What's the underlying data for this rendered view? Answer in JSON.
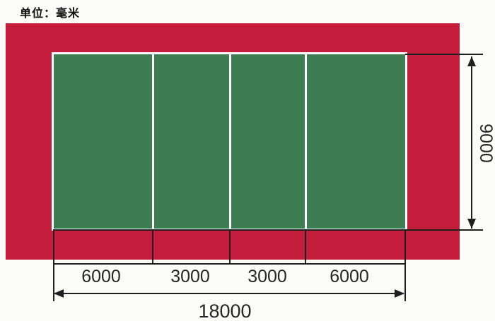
{
  "unit_label": "单位：毫米",
  "colors": {
    "surround_red": "#c41e3c",
    "court_green": "#3e7d52",
    "court_line_white": "#ffffff",
    "dimension_black": "#1f1f1f",
    "page_background": "#fbfbf8"
  },
  "dimensions": {
    "total_length": "18000",
    "width": "9000",
    "segments": [
      "6000",
      "3000",
      "3000",
      "6000"
    ]
  }
}
